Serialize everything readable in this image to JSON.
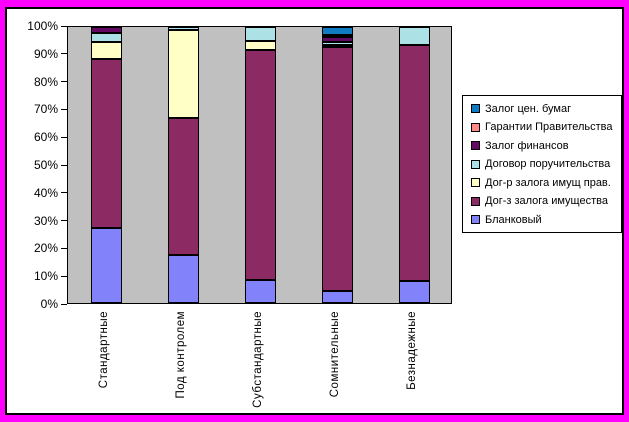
{
  "frame": {
    "border_color": "#FF00FF",
    "chart_background": "#FFFFFF",
    "plot_background": "#C0C0C0",
    "axis_color": "#000000"
  },
  "chart_data": {
    "type": "bar",
    "subtype": "stacked-100-percent-column",
    "title": "",
    "xlabel": "",
    "ylabel": "",
    "grid": false,
    "legend_position": "right",
    "ylim": [
      0,
      100
    ],
    "y_ticks": [
      "0%",
      "10%",
      "20%",
      "30%",
      "40%",
      "50%",
      "60%",
      "70%",
      "80%",
      "90%",
      "100%"
    ],
    "categories": [
      "Стандартные",
      "Под контролем",
      "Субстандартные",
      "Сомнительные",
      "Безнадежные"
    ],
    "series": [
      {
        "name": "Залог цен. бумаг",
        "color": "#0E7BC2",
        "values": [
          0,
          0,
          0,
          3.1,
          0
        ]
      },
      {
        "name": "Гарантии Правительства",
        "color": "#FC8888",
        "values": [
          0,
          0,
          0,
          0.8,
          0
        ]
      },
      {
        "name": "Залог финансов",
        "color": "#630B63",
        "values": [
          2,
          0,
          0,
          1.8,
          0
        ]
      },
      {
        "name": "Договор поручительства",
        "color": "#ACE2E6",
        "values": [
          3.5,
          1.2,
          5,
          0.8,
          6.5
        ]
      },
      {
        "name": "Дог-р залога имущ прав.",
        "color": "#FFFFC6",
        "values": [
          6,
          31.8,
          3.5,
          0.6,
          0
        ]
      },
      {
        "name": "Дог-з залога имущества",
        "color": "#8C2A63",
        "values": [
          61.5,
          49.5,
          83,
          88.4,
          85.5
        ]
      },
      {
        "name": "Бланковый",
        "color": "#8282FA",
        "values": [
          27,
          17.5,
          8.5,
          4.5,
          8
        ]
      }
    ]
  }
}
